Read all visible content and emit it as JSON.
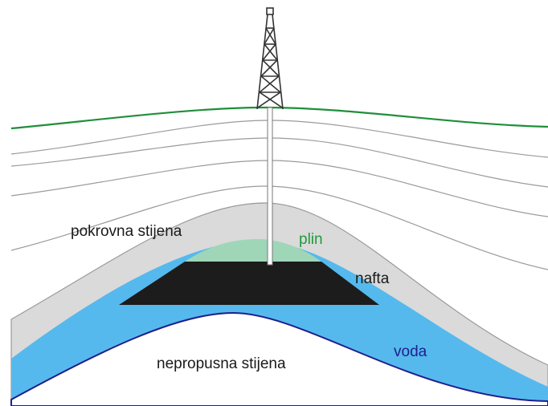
{
  "labels": {
    "cap_rock": "pokrovna stijena",
    "gas": "plin",
    "oil": "nafta",
    "water": "voda",
    "bedrock": "nepropusna stijena"
  }
}
